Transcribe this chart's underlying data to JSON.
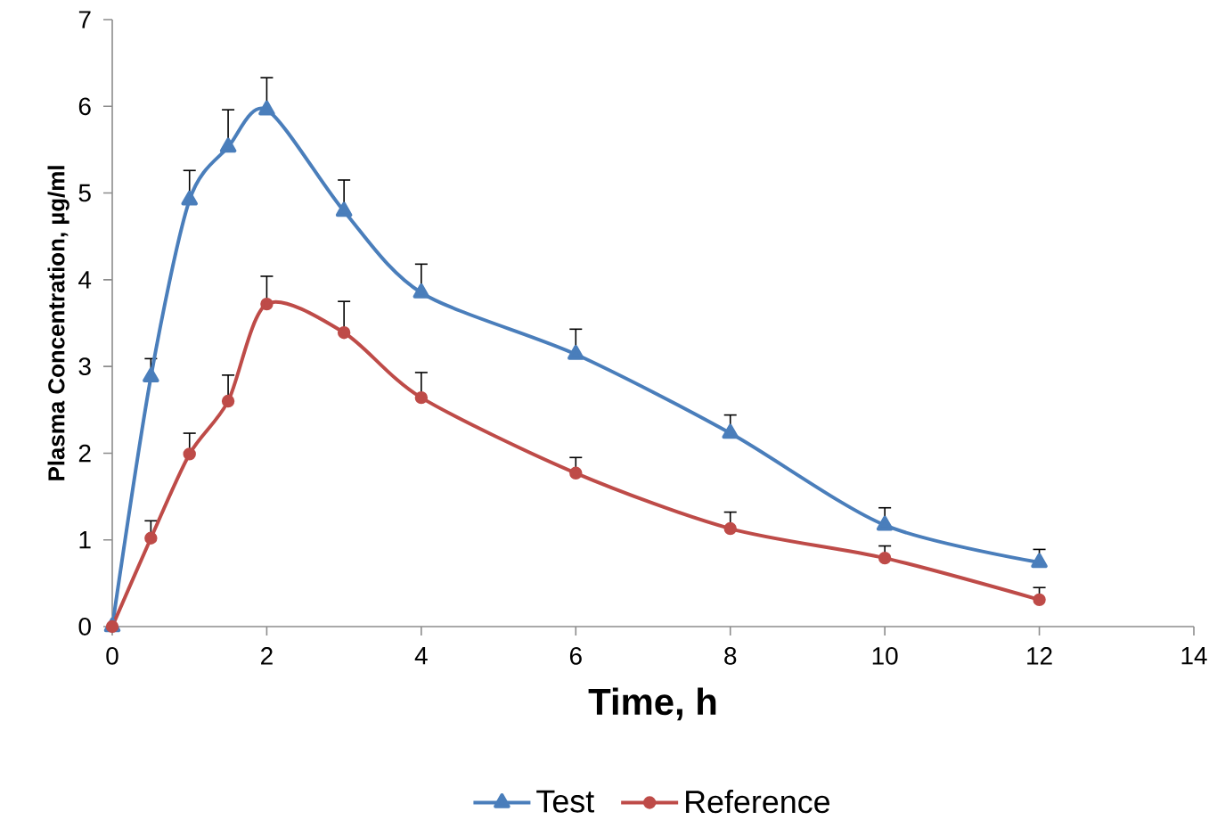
{
  "chart_data": {
    "type": "line",
    "xlabel": "Time, h",
    "ylabel": "Plasma Concentration, µg/ml",
    "x": [
      0,
      0.5,
      1,
      1.5,
      2,
      3,
      4,
      6,
      8,
      10,
      12
    ],
    "xlim": [
      0,
      14
    ],
    "xticks": [
      0,
      2,
      4,
      6,
      8,
      10,
      12,
      14
    ],
    "ylim": [
      0,
      7
    ],
    "yticks": [
      0,
      1,
      2,
      3,
      4,
      5,
      6,
      7
    ],
    "legend": "bottom",
    "grid": false,
    "series": [
      {
        "name": "Test",
        "color": "#4a7ebb",
        "marker": "triangle",
        "values": [
          0,
          2.88,
          4.92,
          5.53,
          5.96,
          4.79,
          3.85,
          3.14,
          2.23,
          1.17,
          0.74
        ],
        "errors": [
          null,
          [
            2.88,
            3.09
          ],
          [
            4.92,
            5.26
          ],
          [
            5.53,
            5.96
          ],
          [
            5.96,
            6.33
          ],
          [
            4.79,
            5.15
          ],
          [
            3.85,
            4.18
          ],
          [
            3.14,
            3.43
          ],
          [
            2.23,
            2.44
          ],
          [
            1.17,
            1.37
          ],
          [
            0.74,
            0.89
          ]
        ]
      },
      {
        "name": "Reference",
        "color": "#be4b48",
        "marker": "circle",
        "values": [
          0,
          1.02,
          1.99,
          2.6,
          3.72,
          3.39,
          2.64,
          1.77,
          1.13,
          0.79,
          0.31
        ],
        "errors": [
          null,
          [
            1.02,
            1.22
          ],
          [
            1.99,
            2.23
          ],
          [
            2.6,
            2.9
          ],
          [
            3.72,
            4.04
          ],
          [
            3.39,
            3.75
          ],
          [
            2.64,
            2.93
          ],
          [
            1.77,
            1.95
          ],
          [
            1.13,
            1.32
          ],
          [
            0.79,
            0.93
          ],
          [
            0.31,
            0.45
          ]
        ]
      }
    ]
  }
}
